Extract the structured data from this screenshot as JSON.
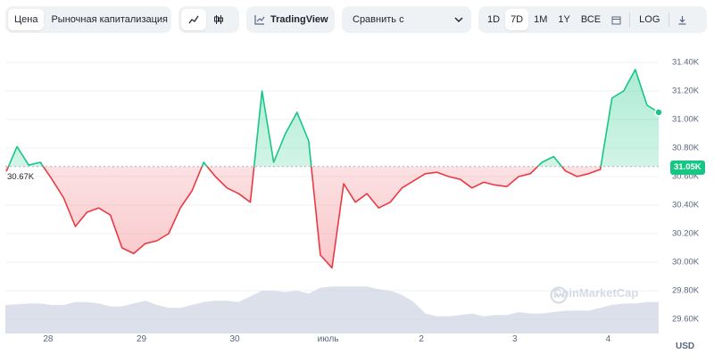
{
  "toolbar": {
    "price_tabs": [
      "Цена",
      "Рыночная капитализация"
    ],
    "active_price_tab": "Цена",
    "chart_type_icons": [
      "line-chart-icon",
      "candlestick-icon"
    ],
    "tradingview_label": "TradingView",
    "compare_placeholder": "Сравнить с",
    "ranges": [
      "1D",
      "7D",
      "1M",
      "1Y",
      "ВСЕ"
    ],
    "active_range": "7D",
    "log_label": "LOG"
  },
  "chart_data": {
    "type": "line",
    "x_ticks": [
      "28",
      "29",
      "30",
      "июль",
      "2",
      "3",
      "4"
    ],
    "y_ticks": [
      "31.40K",
      "31.20K",
      "31.00K",
      "30.80K",
      "30.60K",
      "30.40K",
      "30.20K",
      "30.00K",
      "29.80K",
      "29.60K"
    ],
    "ylim": [
      29500,
      31500
    ],
    "reference_value": 30670,
    "reference_label": "30.67K",
    "current_value": 31050,
    "current_label": "31.05K",
    "currency": "USD",
    "watermark": "CoinMarketCap",
    "colors": {
      "up": "#16c784",
      "down": "#ea3943",
      "volume": "#cfd6e4"
    },
    "series": [
      {
        "x": [
          "06-27 13:00",
          "06-27 16:00",
          "06-27 19:00",
          "06-27 22:00",
          "06-28 01:00",
          "06-28 04:00",
          "06-28 07:00",
          "06-28 10:00",
          "06-28 13:00",
          "06-28 16:00",
          "06-28 19:00",
          "06-28 22:00",
          "06-29 01:00",
          "06-29 04:00",
          "06-29 07:00",
          "06-29 10:00",
          "06-29 13:00",
          "06-29 16:00",
          "06-29 19:00",
          "06-29 22:00",
          "06-30 01:00",
          "06-30 04:00",
          "06-30 07:00",
          "06-30 10:00",
          "06-30 13:00",
          "06-30 16:00",
          "06-30 19:00",
          "06-30 22:00",
          "07-01 01:00",
          "07-01 04:00",
          "07-01 07:00",
          "07-01 10:00",
          "07-01 13:00",
          "07-01 16:00",
          "07-01 19:00",
          "07-01 22:00",
          "07-02 01:00",
          "07-02 04:00",
          "07-02 07:00",
          "07-02 10:00",
          "07-02 13:00",
          "07-02 16:00",
          "07-02 19:00",
          "07-02 22:00",
          "07-03 01:00",
          "07-03 04:00",
          "07-03 07:00",
          "07-03 10:00",
          "07-03 13:00",
          "07-03 16:00",
          "07-03 19:00",
          "07-03 22:00",
          "07-04 01:00",
          "07-04 04:00",
          "07-04 07:00",
          "07-04 10:00",
          "07-04 13:00"
        ],
        "values": [
          30620,
          30810,
          30680,
          30700,
          30580,
          30450,
          30250,
          30350,
          30380,
          30330,
          30100,
          30060,
          30130,
          30150,
          30200,
          30380,
          30500,
          30700,
          30600,
          30520,
          30480,
          30420,
          31200,
          30700,
          30900,
          31050,
          30850,
          30050,
          29960,
          30550,
          30420,
          30480,
          30380,
          30420,
          30520,
          30570,
          30620,
          30630,
          30600,
          30580,
          30520,
          30560,
          30540,
          30530,
          30600,
          30620,
          30700,
          30740,
          30640,
          30600,
          30620,
          30650,
          31150,
          31200,
          31350,
          31100,
          31050
        ]
      }
    ],
    "volume": [
      29700,
      29705,
      29710,
      29710,
      29700,
      29700,
      29720,
      29720,
      29710,
      29690,
      29690,
      29710,
      29730,
      29700,
      29680,
      29680,
      29700,
      29720,
      29730,
      29730,
      29720,
      29760,
      29800,
      29800,
      29790,
      29800,
      29780,
      29820,
      29830,
      29830,
      29830,
      29830,
      29810,
      29800,
      29770,
      29720,
      29640,
      29620,
      29620,
      29630,
      29640,
      29620,
      29630,
      29630,
      29650,
      29640,
      29640,
      29650,
      29660,
      29660,
      29660,
      29680,
      29700,
      29710,
      29710,
      29720,
      29720
    ]
  }
}
